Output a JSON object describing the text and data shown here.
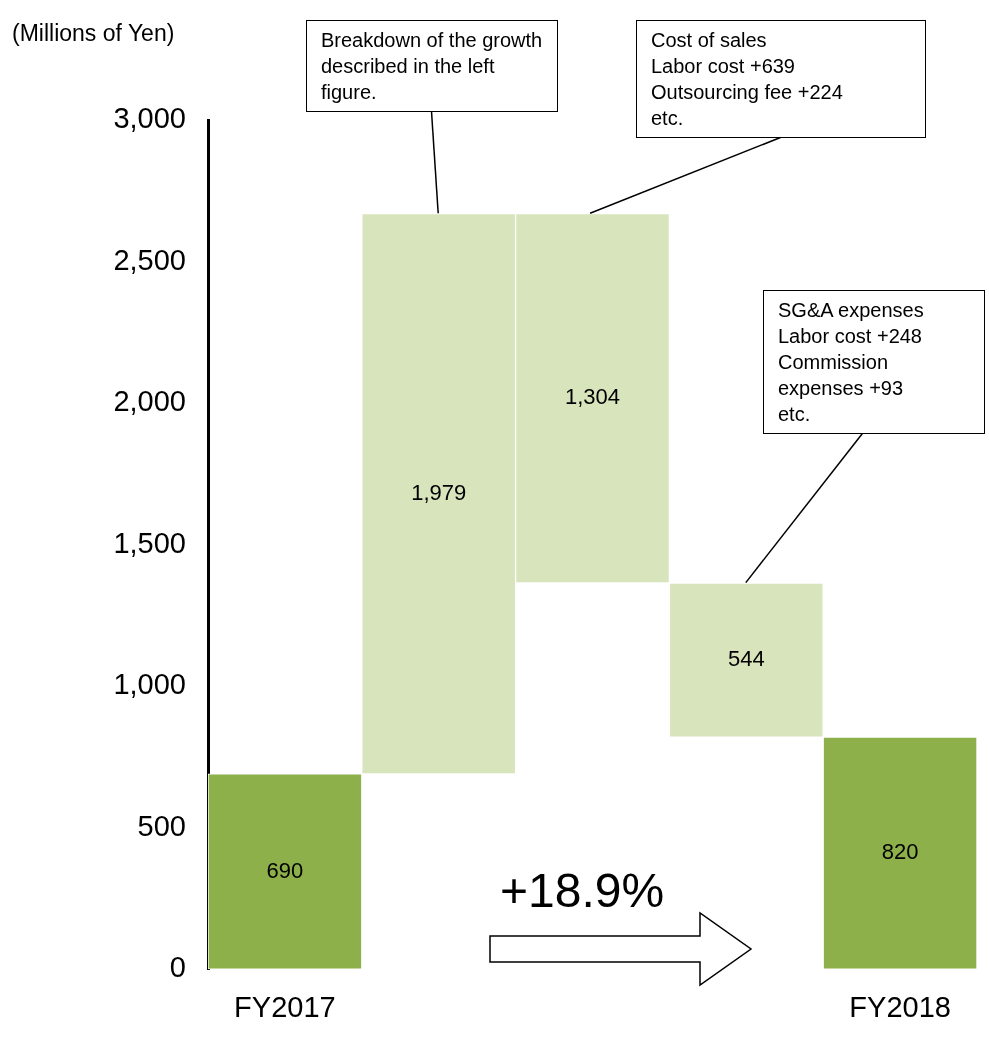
{
  "chart_data": {
    "type": "bar",
    "ylabel": "(Millions of Yen)",
    "categories": [
      "FY2017",
      null,
      null,
      null,
      "FY2018"
    ],
    "values": [
      690,
      1979,
      1304,
      544,
      820
    ],
    "base": [
      0,
      690,
      1365,
      820,
      0
    ],
    "colors": [
      "#8db04a",
      "#d8e4bc",
      "#d8e4bc",
      "#d8e4bc",
      "#8db04a"
    ],
    "value_labels": [
      "690",
      "1,979",
      "1,304",
      "544",
      "820"
    ],
    "ylim": [
      0,
      3000
    ],
    "yticks": [
      0,
      500,
      {
        "value": 1000,
        "label": "1,000"
      },
      {
        "value": 1500,
        "label": "1,500"
      },
      {
        "value": 2000,
        "label": "2,000"
      },
      {
        "value": 2500,
        "label": "2,500"
      },
      {
        "value": 3000,
        "label": "3,000"
      }
    ],
    "grid": false,
    "legend": false,
    "annotations": [
      "Breakdown of the growth described in the left figure.",
      "Cost of sales\nLabor cost +639\nOutsourcing fee +224\netc.",
      "SG&A expenses\nLabor cost +248\nCommission expenses +93\netc.",
      "+18.9%"
    ]
  }
}
